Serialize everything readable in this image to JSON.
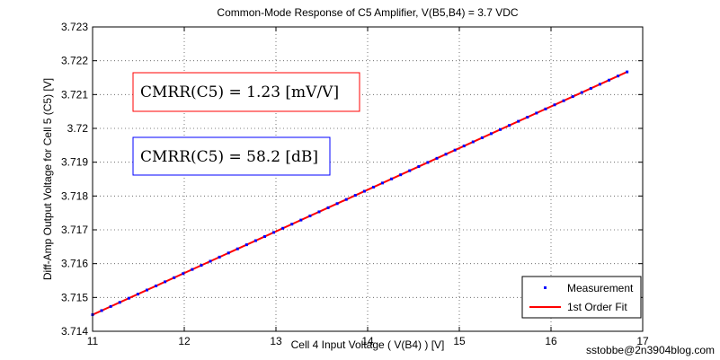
{
  "chart_data": {
    "type": "line",
    "title": "Common-Mode Response of C5 Amplifier, V(B5,B4) = 3.7 VDC",
    "xlabel": "Cell 4 Input Voltage ( V(B4) ) [V]",
    "ylabel": "Diff-Amp Output Voltage for Cell 5 (C5) [V]",
    "xlim": [
      11,
      17
    ],
    "ylim": [
      3.714,
      3.723
    ],
    "xticks": [
      11,
      12,
      13,
      14,
      15,
      16,
      17
    ],
    "xtick_labels": [
      "11",
      "12",
      "13",
      "14",
      "15",
      "16",
      "17"
    ],
    "yticks": [
      3.714,
      3.715,
      3.716,
      3.717,
      3.718,
      3.719,
      3.72,
      3.721,
      3.722,
      3.723
    ],
    "ytick_labels": [
      "3.714",
      "3.715",
      "3.716",
      "3.717",
      "3.718",
      "3.719",
      "3.72",
      "3.721",
      "3.722",
      "3.723"
    ],
    "grid": true,
    "legend_position": "bottom-right",
    "series": [
      {
        "name": "Measurement",
        "kind": "scatter",
        "color": "#0000ff",
        "x_start": 11.0,
        "x_end": 16.83,
        "count": 60,
        "y_at_x_start": 3.71449,
        "y_at_x_end": 3.72167
      },
      {
        "name": "1st Order Fit",
        "kind": "line",
        "color": "#ff0000",
        "x": [
          11.0,
          16.83
        ],
        "y": [
          3.71449,
          3.72167
        ]
      }
    ],
    "annotations": [
      {
        "text": "CMRR(C5) = 1.23  [mV/V]",
        "border_color": "#ff0000"
      },
      {
        "text": "CMRR(C5) = 58.2  [dB]",
        "border_color": "#0000ff"
      }
    ]
  },
  "watermark": "sstobbe@2n3904blog.com"
}
